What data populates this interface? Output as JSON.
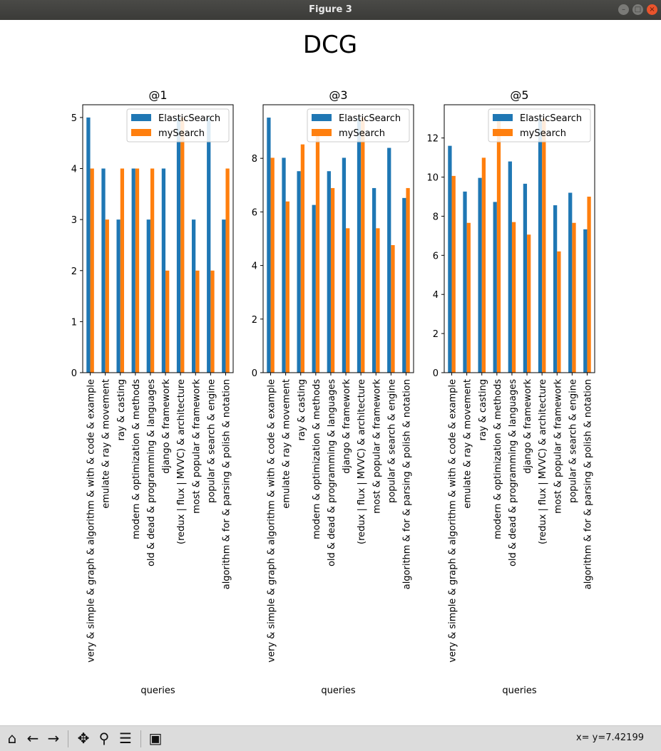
{
  "window": {
    "title": "Figure 3",
    "buttons": [
      "minimize",
      "maximize",
      "close"
    ]
  },
  "toolbar": {
    "items": [
      {
        "name": "home-button",
        "icon": "home-icon",
        "glyph": "⌂"
      },
      {
        "name": "back-button",
        "icon": "arrow-left-icon",
        "glyph": "←"
      },
      {
        "name": "forward-button",
        "icon": "arrow-right-icon",
        "glyph": "→"
      },
      {
        "name": "pan-button",
        "icon": "move-icon",
        "glyph": "✥"
      },
      {
        "name": "zoom-button",
        "icon": "magnifier-icon",
        "glyph": "⚲"
      },
      {
        "name": "configure-subplots-button",
        "icon": "sliders-icon",
        "glyph": "☰"
      },
      {
        "name": "save-button",
        "icon": "floppy-disk-icon",
        "glyph": "▣"
      }
    ],
    "coordinates": "x= y=7.42199"
  },
  "figure": {
    "suptitle": "DCG"
  },
  "chart_data": [
    {
      "type": "bar",
      "title": "@1",
      "xlabel": "queries",
      "ylabel": "",
      "ylim": [
        0,
        5.25
      ],
      "yticks": [
        0,
        1,
        2,
        3,
        4,
        5
      ],
      "legend": "top-right",
      "categories": [
        "very & simple & graph & algorithm & with & code & example",
        "emulate & ray & movement",
        "ray & casting",
        "modern & optimization & methods",
        "old & dead & programming & languages",
        "django & framework",
        "(redux | flux | MVVC) & architecture",
        "most & popular & framework",
        "popular & search & engine",
        "algorithm & for & parsing & polish & notation"
      ],
      "series": [
        {
          "name": "ElasticSearch",
          "color": "#1f77b4",
          "values": [
            5,
            4,
            3,
            4,
            3,
            4,
            5,
            3,
            5,
            3
          ]
        },
        {
          "name": "mySearch",
          "color": "#ff7f0e",
          "values": [
            4,
            3,
            4,
            4,
            4,
            2,
            5,
            2,
            2,
            4
          ]
        }
      ]
    },
    {
      "type": "bar",
      "title": "@3",
      "xlabel": "queries",
      "ylabel": "",
      "ylim": [
        0,
        10.0
      ],
      "yticks": [
        0,
        2,
        4,
        6,
        8
      ],
      "legend": "top-right",
      "categories": [
        "very & simple & graph & algorithm & with & code & example",
        "emulate & ray & movement",
        "ray & casting",
        "modern & optimization & methods",
        "old & dead & programming & languages",
        "django & framework",
        "(redux | flux | MVVC) & architecture",
        "most & popular & framework",
        "popular & search & engine",
        "algorithm & for & parsing & polish & notation"
      ],
      "series": [
        {
          "name": "ElasticSearch",
          "color": "#1f77b4",
          "values": [
            9.52,
            8.02,
            7.52,
            6.26,
            7.52,
            8.02,
            9.52,
            6.89,
            8.39,
            6.52
          ]
        },
        {
          "name": "mySearch",
          "color": "#ff7f0e",
          "values": [
            8.02,
            6.39,
            8.52,
            9.02,
            6.89,
            5.39,
            9.52,
            5.39,
            4.76,
            6.89
          ]
        }
      ]
    },
    {
      "type": "bar",
      "title": "@5",
      "xlabel": "queries",
      "ylabel": "",
      "ylim": [
        0,
        13.7
      ],
      "yticks": [
        0,
        2,
        4,
        6,
        8,
        10,
        12
      ],
      "legend": "top-right",
      "categories": [
        "very & simple & graph & algorithm & with & code & example",
        "emulate & ray & movement",
        "ray & casting",
        "modern & optimization & methods",
        "old & dead & programming & languages",
        "django & framework",
        "(redux | flux | MVVC) & architecture",
        "most & popular & framework",
        "popular & search & engine",
        "algorithm & for & parsing & polish & notation"
      ],
      "series": [
        {
          "name": "ElasticSearch",
          "color": "#1f77b4",
          "values": [
            11.6,
            9.26,
            9.96,
            8.73,
            10.8,
            9.66,
            13.0,
            8.56,
            9.2,
            7.33
          ]
        },
        {
          "name": "mySearch",
          "color": "#ff7f0e",
          "values": [
            10.06,
            7.66,
            10.99,
            13.0,
            7.7,
            7.06,
            13.0,
            6.2,
            7.66,
            9.0
          ]
        }
      ]
    }
  ]
}
